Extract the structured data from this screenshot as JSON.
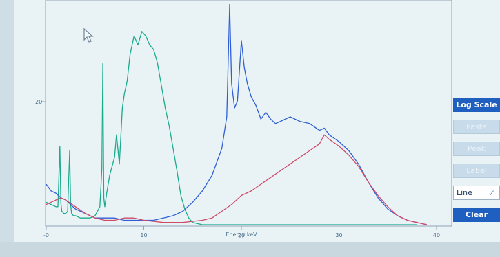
{
  "spectrum": {
    "y_mark_label": "20",
    "x_ticks": [
      {
        "value": 0,
        "label": "-0"
      },
      {
        "value": 10,
        "label": "10"
      },
      {
        "value": 20,
        "label": "20"
      },
      {
        "value": 30,
        "label": "30"
      },
      {
        "value": 40,
        "label": "40"
      }
    ],
    "x_axis_label": "Energy keV"
  },
  "buttons": {
    "log_scale": "Log Scale",
    "disabled_1": "Paste",
    "disabled_2": "Peak",
    "disabled_3": "Label",
    "line": "Line",
    "line_check": "✓",
    "clear": "Clear"
  },
  "chart_data": {
    "type": "line",
    "xlabel": "Energy keV",
    "xlim": [
      0,
      40
    ],
    "ylim": [
      0,
      100
    ],
    "colors": {
      "green": "#1aab8c",
      "blue": "#2f5fd4",
      "red": "#d04a68"
    },
    "series": [
      {
        "color_key": "green",
        "x": [
          0,
          0.5,
          1,
          1.2,
          1.4,
          1.5,
          1.6,
          1.8,
          2,
          2.2,
          2.4,
          2.5,
          2.6,
          2.8,
          3,
          3.5,
          4,
          4.5,
          5,
          5.5,
          5.7,
          5.8,
          5.9,
          6,
          6.2,
          6.5,
          7,
          7.2,
          7.5,
          7.8,
          8,
          8.3,
          8.6,
          9,
          9.4,
          9.8,
          10.2,
          10.6,
          11,
          11.4,
          11.8,
          12.2,
          12.6,
          13,
          13.4,
          13.8,
          14.2,
          14.6,
          15,
          16,
          20,
          30,
          38
        ],
        "y": [
          10,
          9,
          8,
          8,
          35,
          10,
          6,
          5,
          5,
          6,
          33,
          9,
          5,
          4,
          4,
          3,
          3,
          3,
          4,
          8,
          25,
          72,
          12,
          8,
          14,
          22,
          30,
          40,
          27,
          52,
          58,
          64,
          76,
          84,
          80,
          86,
          84,
          80,
          78,
          72,
          62,
          52,
          44,
          34,
          24,
          13,
          7,
          3,
          1,
          0,
          0,
          0,
          0
        ]
      },
      {
        "color_key": "blue",
        "x": [
          0,
          0.5,
          1,
          1.5,
          2,
          2.5,
          3,
          4,
          5,
          6,
          7,
          8,
          9,
          10,
          11,
          12,
          13,
          14,
          15,
          16,
          17,
          17.5,
          18,
          18.5,
          18.8,
          19,
          19.3,
          19.6,
          20,
          20.3,
          20.6,
          21,
          21.5,
          22,
          22.5,
          23,
          23.5,
          24,
          25,
          26,
          27,
          28,
          28.5,
          29,
          30,
          31,
          32,
          33,
          34,
          35,
          36,
          37,
          38,
          39
        ],
        "y": [
          18,
          15,
          14,
          12,
          11,
          9,
          7,
          5,
          3,
          3,
          3,
          2,
          2,
          2,
          2,
          3,
          4,
          6,
          10,
          15,
          22,
          28,
          34,
          48,
          98,
          63,
          52,
          55,
          82,
          70,
          63,
          57,
          53,
          47,
          50,
          47,
          45,
          46,
          48,
          46,
          45,
          42,
          43,
          40,
          37,
          33,
          27,
          19,
          12,
          7,
          4,
          2,
          1,
          0
        ]
      },
      {
        "color_key": "red",
        "x": [
          0,
          0.5,
          1,
          1.5,
          2,
          3,
          4,
          5,
          6,
          7,
          8,
          9,
          10,
          12,
          14,
          16,
          17,
          18,
          19,
          20,
          21,
          22,
          23,
          24,
          25,
          26,
          27,
          28,
          28.5,
          29,
          30,
          31,
          32,
          33,
          34,
          35,
          36,
          37,
          38,
          39
        ],
        "y": [
          9,
          10,
          11,
          12,
          11,
          8,
          5,
          3,
          2,
          2,
          3,
          3,
          2,
          1,
          1,
          2,
          3,
          6,
          9,
          13,
          15,
          18,
          21,
          24,
          27,
          30,
          33,
          36,
          40,
          38,
          35,
          31,
          26,
          19,
          13,
          8,
          4,
          2,
          1,
          0
        ]
      }
    ]
  }
}
